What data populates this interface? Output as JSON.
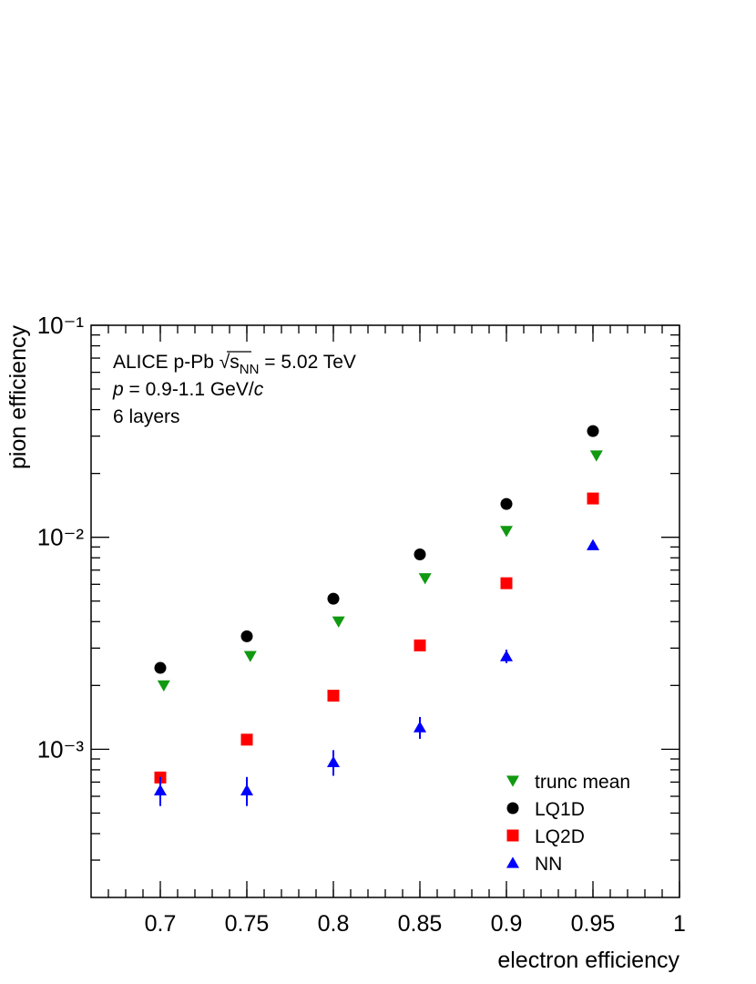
{
  "chart_data": {
    "type": "scatter",
    "x_label": "electron efficiency",
    "y_label": "pion efficiency",
    "annotation_lines": [
      [
        "ALICE p-Pb ",
        "√",
        "s",
        "NN",
        " = 5.02 TeV"
      ],
      [
        "p",
        " = 0.9-1.1 GeV/",
        "c"
      ],
      [
        "6 layers"
      ]
    ],
    "log_y": true,
    "xlim": [
      0.66,
      1
    ],
    "xticks": [
      0.7,
      0.75,
      0.8,
      0.85,
      0.9,
      0.95,
      1
    ],
    "ylim": [
      0.0002,
      0.1
    ],
    "yticks": [
      {
        "value": 0.001,
        "label": "10⁻³"
      },
      {
        "value": 0.01,
        "label": "10⁻²"
      },
      {
        "value": 0.1,
        "label": "10⁻¹"
      }
    ],
    "legend": "lower right",
    "series": [
      {
        "name": "trunc mean",
        "color": "#119911",
        "marker": "triangle-down",
        "x": [
          0.702,
          0.752,
          0.803,
          0.853,
          0.9,
          0.952
        ],
        "values": [
          0.002,
          0.00275,
          0.004,
          0.0064,
          0.0107,
          0.0243
        ]
      },
      {
        "name": "LQ1D",
        "color": "#000000",
        "marker": "circle",
        "x": [
          0.7,
          0.75,
          0.8,
          0.85,
          0.9,
          0.95
        ],
        "values": [
          0.00242,
          0.00341,
          0.00513,
          0.0083,
          0.01436,
          0.0317
        ]
      },
      {
        "name": "LQ2D",
        "color": "#ff0000",
        "marker": "square",
        "x": [
          0.7,
          0.75,
          0.8,
          0.85,
          0.9,
          0.95
        ],
        "values": [
          0.000736,
          0.00111,
          0.00179,
          0.00309,
          0.00607,
          0.01524
        ]
      },
      {
        "name": "NN",
        "color": "#0000ff",
        "marker": "triangle-up",
        "x": [
          0.7,
          0.75,
          0.8,
          0.85,
          0.9,
          0.95
        ],
        "values": [
          0.00064,
          0.00064,
          0.00087,
          0.00127,
          0.00275,
          0.00919
        ],
        "errors": [
          0.0001,
          0.0001,
          0.00012,
          0.00015,
          0.0002,
          0.0003
        ]
      }
    ]
  }
}
